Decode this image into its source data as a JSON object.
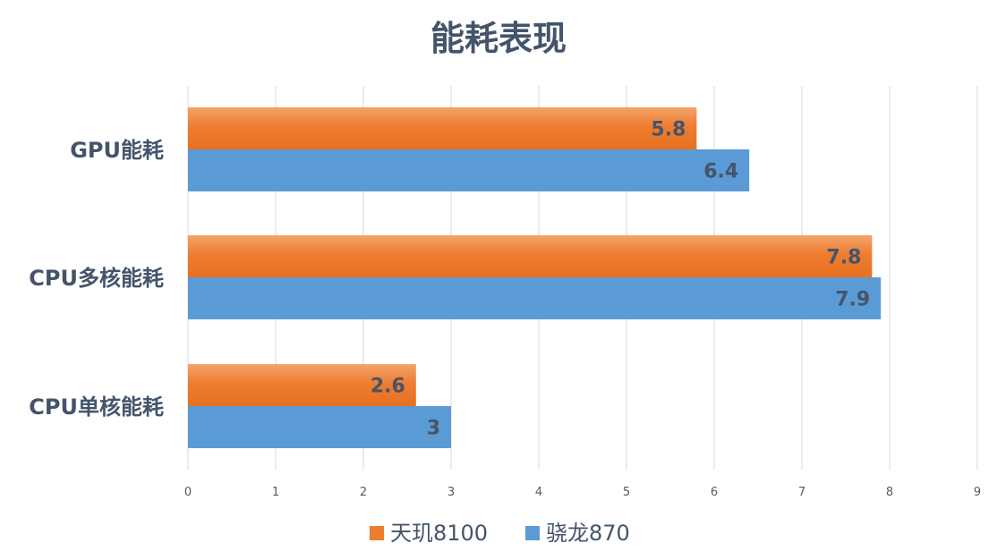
{
  "chart_data": {
    "type": "bar",
    "orientation": "horizontal",
    "title": "能耗表现",
    "categories": [
      "GPU能耗",
      "CPU多核能耗",
      "CPU单核能耗"
    ],
    "series": [
      {
        "name": "天玑8100",
        "color": "#ed7d31",
        "values": [
          5.8,
          7.8,
          2.6
        ]
      },
      {
        "name": "骁龙870",
        "color": "#5b9bd5",
        "values": [
          6.4,
          7.9,
          3
        ]
      }
    ],
    "xlim": [
      0,
      9
    ],
    "xticks": [
      "0",
      "1",
      "2",
      "3",
      "4",
      "5",
      "6",
      "7",
      "8",
      "9"
    ],
    "data_labels": [
      [
        "5.8",
        "7.8",
        "2.6"
      ],
      [
        "6.4",
        "7.9",
        "3"
      ]
    ],
    "grid": true,
    "legend_position": "bottom"
  }
}
